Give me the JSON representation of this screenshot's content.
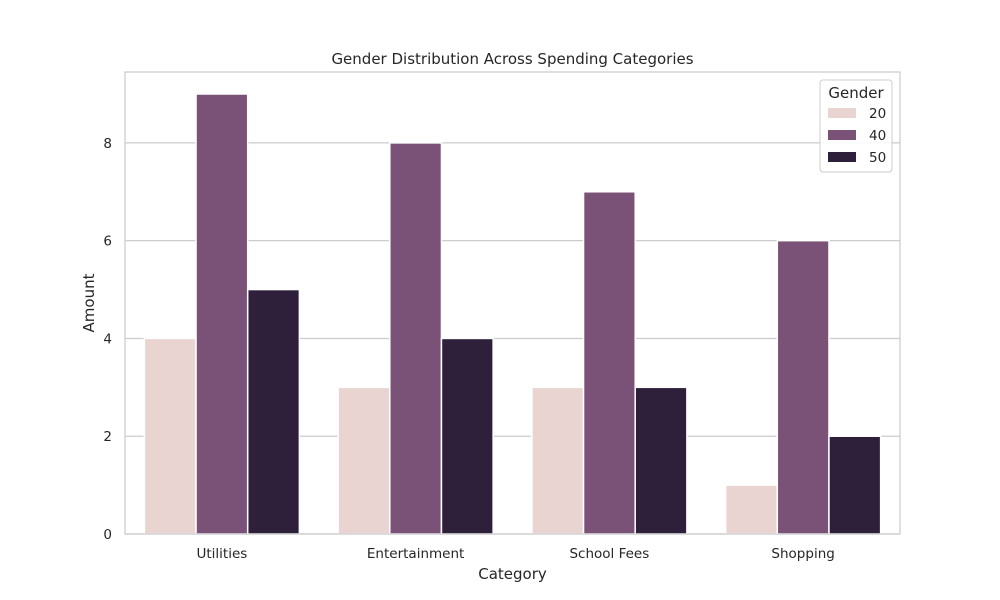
{
  "chart_data": {
    "type": "bar",
    "title": "Gender Distribution Across Spending Categories",
    "xlabel": "Category",
    "ylabel": "Amount",
    "categories": [
      "Utilities",
      "Entertainment",
      "School Fees",
      "Shopping"
    ],
    "ylim": [
      0,
      9.45
    ],
    "yticks": [
      "0",
      "2",
      "4",
      "6",
      "8"
    ],
    "grid": true,
    "legend": {
      "title": "Gender",
      "placement": "top-right"
    },
    "series": [
      {
        "name": "20",
        "color": "#ead4d1",
        "values": [
          4,
          3,
          3,
          1
        ]
      },
      {
        "name": "40",
        "color": "#7b5277",
        "values": [
          9,
          8,
          7,
          6
        ]
      },
      {
        "name": "50",
        "color": "#2e1f3b",
        "values": [
          5,
          4,
          3,
          2
        ]
      }
    ]
  }
}
